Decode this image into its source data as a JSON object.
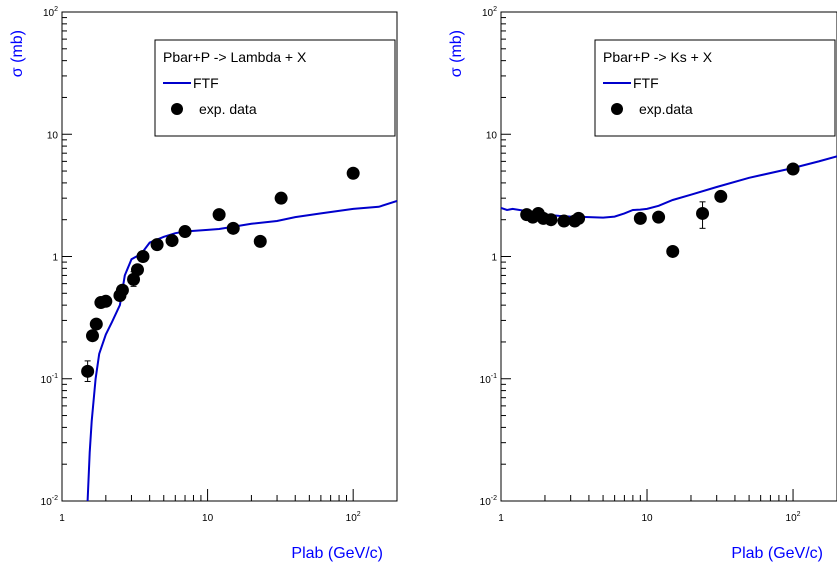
{
  "colors": {
    "curve": "#0000cc",
    "axis_title": "#0000ff",
    "points": "#000000"
  },
  "chart_data": [
    {
      "type": "line",
      "x_scale": "log",
      "y_scale": "log",
      "xlim": [
        1,
        200
      ],
      "ylim": [
        0.01,
        100
      ],
      "grid": false,
      "xlabel": "Plab (GeV/c)",
      "ylabel": "σ (mb)",
      "x_ticks": [
        "1",
        "10",
        "10^2"
      ],
      "y_ticks": [
        "10^-2",
        "10^-1",
        "1",
        "10",
        "10^2"
      ],
      "legend": {
        "position": "top-right",
        "title": "Pbar+P -> Lambda + X",
        "entries": [
          {
            "label": "FTF",
            "kind": "line"
          },
          {
            "label": "exp. data",
            "kind": "marker"
          }
        ]
      },
      "series": [
        {
          "name": "FTF",
          "kind": "line",
          "x": [
            1.5,
            1.55,
            1.6,
            1.7,
            1.8,
            2.0,
            2.2,
            2.5,
            2.7,
            3.0,
            3.5,
            4.0,
            5.0,
            6.0,
            7.0,
            8.0,
            10.0,
            12.0,
            15.0,
            20.0,
            30.0,
            40.0,
            60.0,
            100.0,
            150.0,
            200.0
          ],
          "y": [
            0.01,
            0.025,
            0.045,
            0.1,
            0.16,
            0.23,
            0.29,
            0.4,
            0.7,
            0.95,
            1.05,
            1.3,
            1.45,
            1.55,
            1.6,
            1.62,
            1.65,
            1.68,
            1.75,
            1.85,
            1.95,
            2.1,
            2.25,
            2.45,
            2.55,
            2.85
          ]
        },
        {
          "name": "exp. data",
          "kind": "scatter",
          "points": [
            {
              "x": 1.5,
              "y": 0.115,
              "lo": 0.095,
              "hi": 0.14
            },
            {
              "x": 1.62,
              "y": 0.225,
              "lo": 0.21,
              "hi": 0.24
            },
            {
              "x": 1.72,
              "y": 0.28
            },
            {
              "x": 1.85,
              "y": 0.42
            },
            {
              "x": 2.0,
              "y": 0.43
            },
            {
              "x": 2.5,
              "y": 0.48
            },
            {
              "x": 2.6,
              "y": 0.53
            },
            {
              "x": 3.1,
              "y": 0.65,
              "lo": 0.57,
              "hi": 0.75
            },
            {
              "x": 3.3,
              "y": 0.78
            },
            {
              "x": 3.6,
              "y": 1.0
            },
            {
              "x": 4.5,
              "y": 1.25
            },
            {
              "x": 5.7,
              "y": 1.35
            },
            {
              "x": 7.0,
              "y": 1.6
            },
            {
              "x": 12.0,
              "y": 2.2
            },
            {
              "x": 15.0,
              "y": 1.7
            },
            {
              "x": 23.0,
              "y": 1.33
            },
            {
              "x": 32.0,
              "y": 3.0
            },
            {
              "x": 100.0,
              "y": 4.8
            }
          ]
        }
      ]
    },
    {
      "type": "line",
      "x_scale": "log",
      "y_scale": "log",
      "xlim": [
        1,
        200
      ],
      "ylim": [
        0.01,
        100
      ],
      "grid": false,
      "xlabel": "Plab (GeV/c)",
      "ylabel": "σ (mb)",
      "x_ticks": [
        "1",
        "10",
        "10^2"
      ],
      "y_ticks": [
        "10^-2",
        "10^-1",
        "1",
        "10",
        "10^2"
      ],
      "legend": {
        "position": "top-right",
        "title": "Pbar+P -> Ks + X",
        "entries": [
          {
            "label": "FTF",
            "kind": "line"
          },
          {
            "label": "exp.data",
            "kind": "marker"
          }
        ]
      },
      "series": [
        {
          "name": "FTF",
          "kind": "line",
          "x": [
            1.0,
            1.1,
            1.2,
            1.5,
            2.0,
            2.5,
            3.0,
            4.0,
            5.0,
            6.0,
            7.0,
            8.0,
            9.0,
            10.0,
            12.0,
            15.0,
            20.0,
            30.0,
            50.0,
            100.0,
            150.0,
            200.0
          ],
          "y": [
            2.5,
            2.4,
            2.45,
            2.35,
            2.2,
            2.15,
            2.12,
            2.1,
            2.08,
            2.12,
            2.25,
            2.4,
            2.42,
            2.45,
            2.6,
            2.9,
            3.2,
            3.7,
            4.4,
            5.3,
            6.0,
            6.6
          ]
        },
        {
          "name": "exp.data",
          "kind": "scatter",
          "points": [
            {
              "x": 1.5,
              "y": 2.2
            },
            {
              "x": 1.65,
              "y": 2.1
            },
            {
              "x": 1.8,
              "y": 2.25
            },
            {
              "x": 1.95,
              "y": 2.05
            },
            {
              "x": 2.2,
              "y": 2.0
            },
            {
              "x": 2.7,
              "y": 1.95
            },
            {
              "x": 3.2,
              "y": 1.95
            },
            {
              "x": 3.4,
              "y": 2.05
            },
            {
              "x": 9.0,
              "y": 2.05
            },
            {
              "x": 12.0,
              "y": 2.1
            },
            {
              "x": 15.0,
              "y": 1.1
            },
            {
              "x": 24.0,
              "y": 2.25,
              "lo": 1.7,
              "hi": 2.8
            },
            {
              "x": 32.0,
              "y": 3.1
            },
            {
              "x": 100.0,
              "y": 5.2
            }
          ]
        }
      ]
    }
  ]
}
